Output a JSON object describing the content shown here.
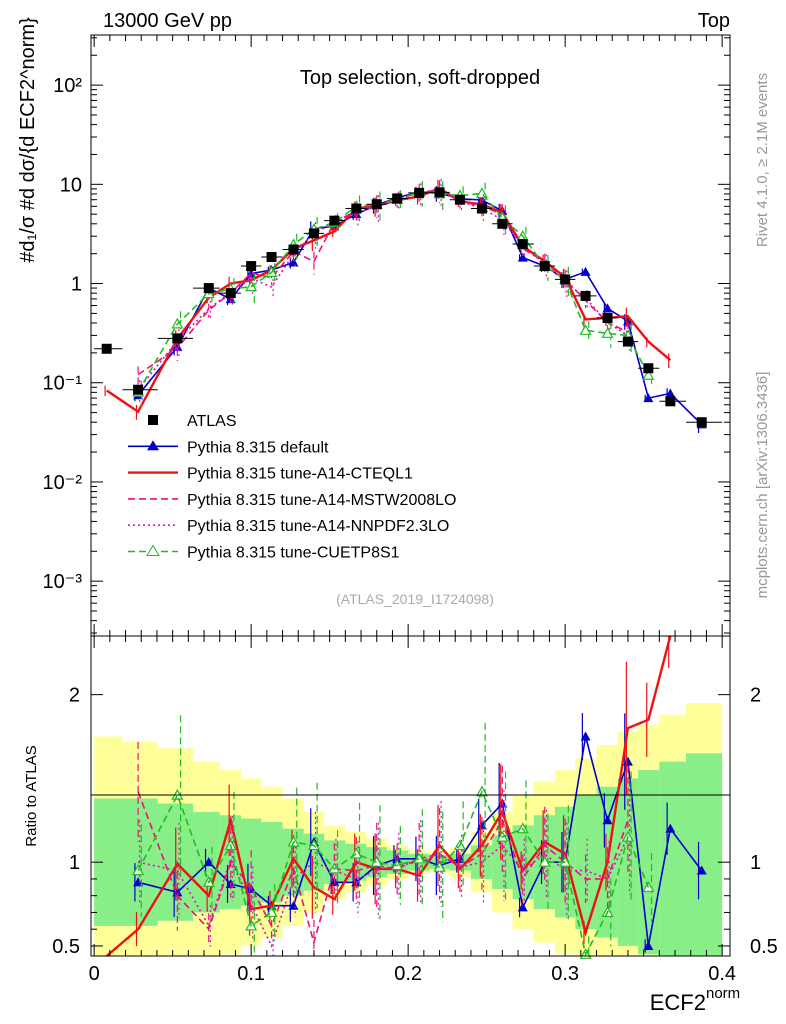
{
  "header": {
    "energy_label": "13000 GeV pp",
    "process_label": "Top",
    "panel_title": "Top selection, soft-dropped",
    "analysis_id": "(ATLAS_2019_I1724098)",
    "side_rivet": "Rivet 4.1.0, ≥ 2.1M events",
    "side_mcplots": "mcplots.cern.ch [arXiv:1306.3436]"
  },
  "axes": {
    "y_main_label": "#d₁/σ #d dσ/{d ECF2^norm}",
    "y_ratio_label": "Ratio to ATLAS",
    "x_label_main": "ECF2",
    "x_label_sup": "norm",
    "x_ticks": [
      "0",
      "0.1",
      "0.2",
      "0.3",
      "0.4"
    ],
    "y_main_ticks": [
      "10⁻³",
      "10⁻²",
      "10⁻¹",
      "1",
      "10",
      "10²"
    ],
    "y_ratio_ticks": [
      "0.5",
      "1",
      "2"
    ]
  },
  "legend": [
    {
      "key": "atlas",
      "label": "ATLAS"
    },
    {
      "key": "default",
      "label": "Pythia 8.315 default"
    },
    {
      "key": "cteql1",
      "label": "Pythia 8.315 tune-A14-CTEQL1"
    },
    {
      "key": "mstw",
      "label": "Pythia 8.315 tune-A14-MSTW2008LO"
    },
    {
      "key": "nnpdf",
      "label": "Pythia 8.315 tune-A14-NNPDF2.3LO"
    },
    {
      "key": "cuetp",
      "label": "Pythia 8.315 tune-CUETP8S1"
    }
  ],
  "colors": {
    "atlas": "#000000",
    "default": "#0000cc",
    "cteql1": "#ee1111",
    "mstw": "#ee1177",
    "nnpdf": "#dd11bb",
    "cuetp": "#22bb22",
    "band_inner": "#88ee88",
    "band_outer": "#ffff99"
  },
  "chart_data": {
    "type": "line",
    "title": "Top selection, soft-dropped",
    "xlabel": "ECF2^norm",
    "ylabel": "1/σ dσ/d ECF2^norm",
    "xlim": [
      -0.002,
      0.405
    ],
    "ylim_main_log": [
      0.00028,
      320
    ],
    "ylim_ratio": [
      0.44,
      2.35
    ],
    "x": [
      0.008,
      0.028,
      0.053,
      0.073,
      0.087,
      0.1,
      0.113,
      0.127,
      0.14,
      0.153,
      0.167,
      0.18,
      0.193,
      0.207,
      0.22,
      0.233,
      0.247,
      0.26,
      0.273,
      0.287,
      0.3,
      0.313,
      0.327,
      0.34,
      0.353,
      0.367,
      0.387
    ],
    "atlas": [
      0.22,
      0.085,
      0.28,
      0.9,
      0.8,
      1.5,
      1.85,
      2.2,
      3.2,
      4.3,
      5.7,
      6.3,
      7.2,
      8.2,
      8.3,
      7.0,
      5.7,
      4.0,
      2.5,
      1.5,
      1.1,
      0.75,
      0.45,
      0.26,
      0.14,
      0.065,
      0.04
    ],
    "bands": {
      "inner": [
        0.38,
        0.38,
        0.35,
        0.3,
        0.28,
        0.26,
        0.24,
        0.2,
        0.17,
        0.13,
        0.11,
        0.09,
        0.07,
        0.05,
        0.04,
        0.05,
        0.1,
        0.16,
        0.22,
        0.28,
        0.33,
        0.4,
        0.45,
        0.5,
        0.55,
        0.6,
        0.65
      ],
      "outer": [
        0.75,
        0.72,
        0.68,
        0.6,
        0.55,
        0.5,
        0.45,
        0.38,
        0.3,
        0.22,
        0.18,
        0.14,
        0.1,
        0.07,
        0.06,
        0.09,
        0.18,
        0.3,
        0.4,
        0.48,
        0.55,
        0.62,
        0.7,
        0.78,
        0.82,
        0.88,
        0.95
      ]
    },
    "series": [
      {
        "name": "Pythia 8.315 default",
        "key": "default",
        "style": "solid",
        "ratio": [
          null,
          0.88,
          0.82,
          1.0,
          0.87,
          0.84,
          0.74,
          0.74,
          1.12,
          0.88,
          0.88,
          0.98,
          1.02,
          1.02,
          0.98,
          1.02,
          1.22,
          1.35,
          0.73,
          1.0,
          1.0,
          1.75,
          1.25,
          1.6,
          0.5,
          1.2,
          0.95
        ]
      },
      {
        "name": "Pythia 8.315 tune-A14-CTEQL1",
        "key": "cteql1",
        "style": "solid",
        "ratio": [
          0.38,
          0.6,
          0.99,
          0.8,
          1.25,
          0.72,
          0.74,
          1.02,
          0.85,
          0.78,
          1.0,
          0.96,
          0.96,
          0.92,
          1.1,
          0.96,
          1.1,
          1.3,
          0.95,
          1.12,
          1.05,
          0.58,
          1.0,
          1.8,
          1.85,
          2.6,
          null
        ]
      },
      {
        "name": "Pythia 8.315 tune-A14-MSTW2008LO",
        "key": "mstw",
        "style": "dashed",
        "ratio": [
          null,
          1.42,
          0.8,
          0.6,
          1.0,
          0.85,
          0.62,
          0.96,
          0.52,
          0.96,
          0.95,
          0.98,
          0.96,
          1.02,
          1.05,
          0.97,
          1.05,
          1.25,
          0.9,
          1.1,
          1.0,
          0.9,
          0.9,
          1.25,
          null,
          null,
          null
        ]
      },
      {
        "name": "Pythia 8.315 tune-A14-NNPDF2.3LO",
        "key": "nnpdf",
        "style": "dotted",
        "ratio": [
          null,
          1.0,
          0.95,
          0.62,
          1.02,
          0.75,
          0.5,
          0.9,
          1.0,
          0.95,
          0.9,
          0.95,
          0.98,
          1.0,
          1.05,
          0.97,
          1.0,
          1.1,
          0.95,
          1.05,
          0.95,
          0.95,
          0.9,
          1.15,
          null,
          null,
          null
        ]
      },
      {
        "name": "Pythia 8.315 tune-CUETP8S1",
        "key": "cuetp",
        "style": "dashed",
        "ratio": [
          null,
          0.95,
          1.4,
          0.88,
          1.1,
          0.62,
          0.7,
          1.12,
          1.1,
          0.96,
          1.05,
          1.0,
          0.98,
          1.02,
          0.97,
          1.1,
          1.42,
          1.15,
          1.2,
          1.0,
          1.0,
          0.45,
          0.7,
          1.15,
          0.85,
          null,
          null
        ]
      }
    ]
  }
}
